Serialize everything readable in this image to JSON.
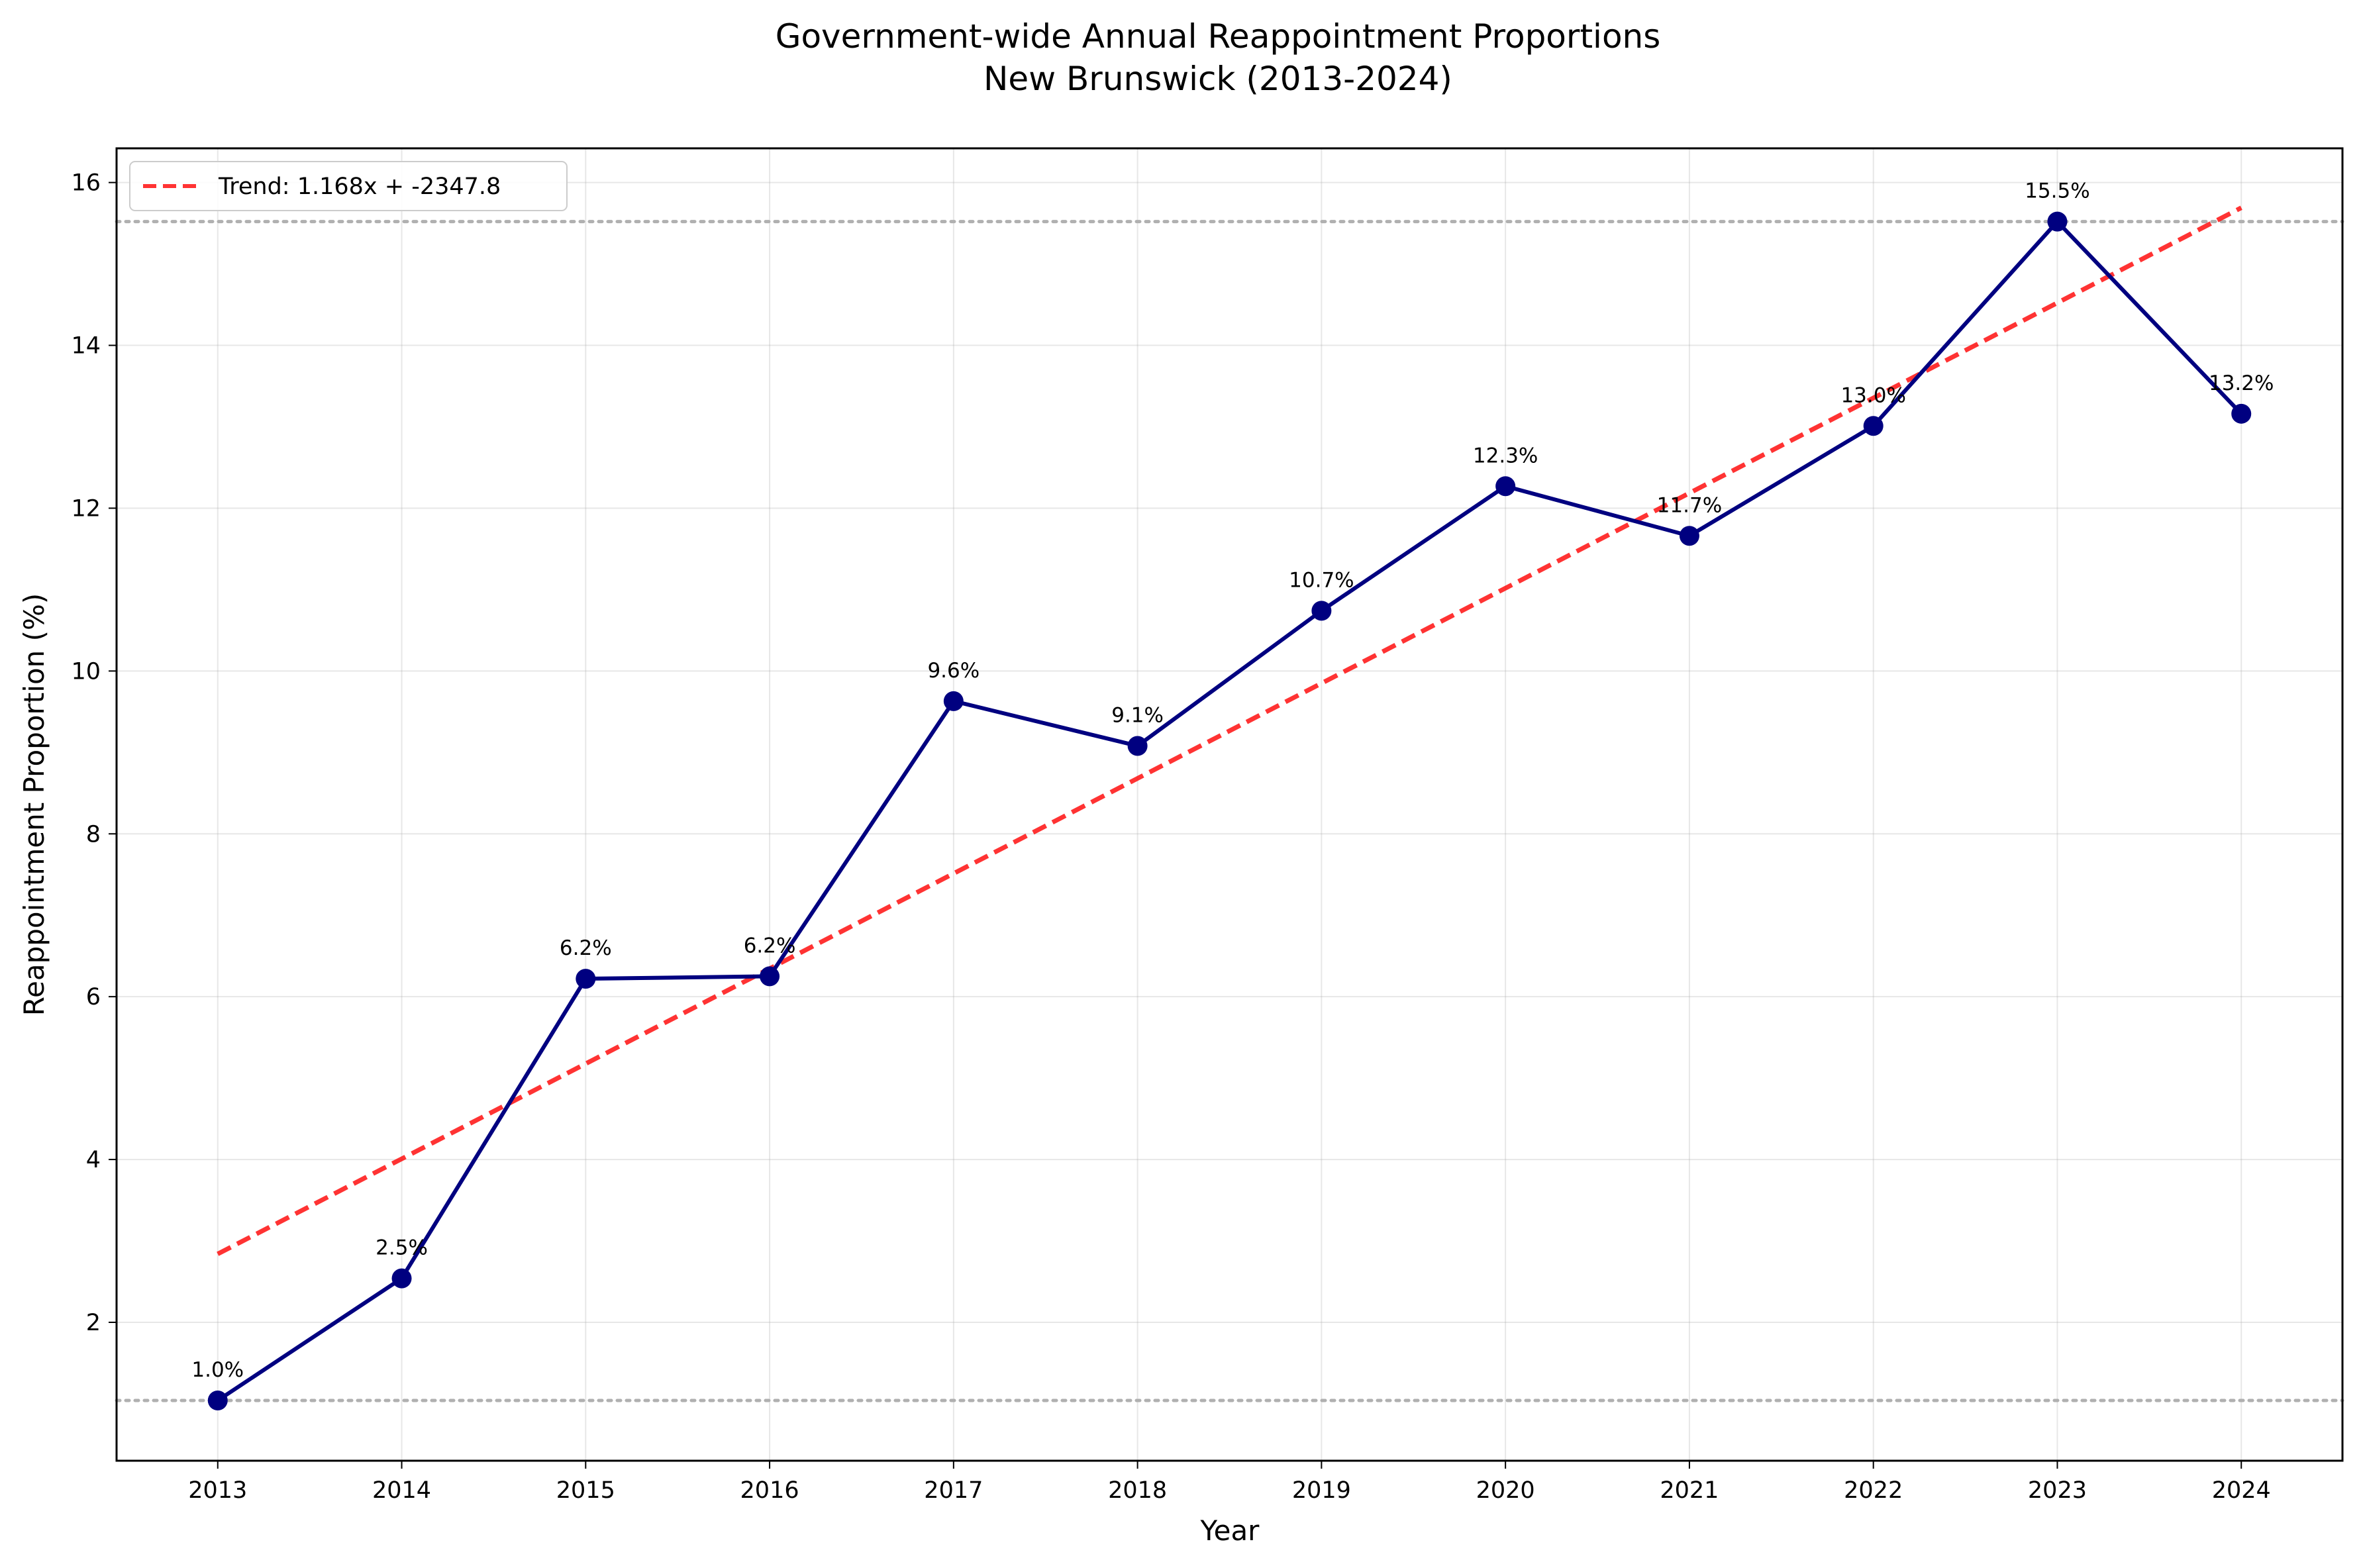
{
  "chart_data": {
    "type": "line",
    "title": "Government-wide Annual Reappointment Proportions",
    "subtitle": "New Brunswick (2013-2024)",
    "xlabel": "Year",
    "ylabel": "Reappointment Proportion (%)",
    "x": [
      2013,
      2014,
      2015,
      2016,
      2017,
      2018,
      2019,
      2020,
      2021,
      2022,
      2023,
      2024
    ],
    "xlim": [
      2012.45,
      2024.55
    ],
    "ylim": [
      0.3,
      16.42
    ],
    "y_ticks": [
      2,
      4,
      6,
      8,
      10,
      12,
      14,
      16
    ],
    "grid": true,
    "legend_position": "top-left",
    "series": [
      {
        "values": [
          1.04,
          2.54,
          6.22,
          6.25,
          9.63,
          9.08,
          10.74,
          12.27,
          11.66,
          13.01,
          15.52,
          13.16
        ],
        "data_labels": [
          "1.0%",
          "2.5%",
          "6.2%",
          "6.2%",
          "9.6%",
          "9.1%",
          "10.7%",
          "12.3%",
          "11.7%",
          "13.0%",
          "15.5%",
          "13.2%"
        ],
        "color": "#000080"
      }
    ],
    "trend": {
      "name": "Trend: 1.168x + -2347.8",
      "x": [
        2013,
        2024
      ],
      "y": [
        2.84,
        15.69
      ],
      "color": "#ff0000"
    },
    "reference_lines": [
      {
        "y": 1.04,
        "style": "dotted",
        "color": "#b0b0b0"
      },
      {
        "y": 15.52,
        "style": "dotted",
        "color": "#b0b0b0"
      }
    ]
  }
}
